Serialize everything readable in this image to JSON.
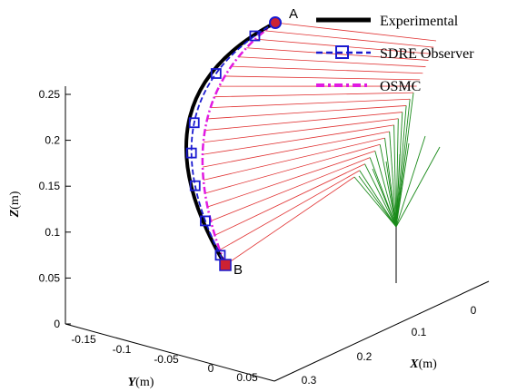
{
  "chart_data": {
    "type": "line",
    "title": "",
    "point_labels": {
      "start": "A",
      "end": "B"
    },
    "axes": {
      "z": {
        "label_letter": "Z",
        "label_unit": "(m)",
        "ticks": [
          "0",
          "0.05",
          "0.1",
          "0.15",
          "0.2",
          "0.25"
        ],
        "ylim": [
          0,
          0.25
        ]
      },
      "y": {
        "label_letter": "Y",
        "label_unit": "(m)",
        "ticks": [
          "-0.15",
          "-0.1",
          "-0.05",
          "0",
          "0.05"
        ]
      },
      "x": {
        "label_letter": "X",
        "label_unit": "(m)",
        "ticks": [
          "0",
          "0.1",
          "0.2",
          "0.3"
        ]
      }
    },
    "legend": {
      "placement": "top-right",
      "entries": [
        {
          "label": "Experimental",
          "color": "#000000",
          "style": "solid"
        },
        {
          "label": "SDRE Observer",
          "color": "#1a1ad0",
          "style": "dashed-square-markers"
        },
        {
          "label": "OSMC",
          "color": "#e11ae1",
          "style": "dash-dot"
        }
      ]
    },
    "series": [
      {
        "name": "Experimental",
        "values": [
          0.06,
          0.1,
          0.15,
          0.2,
          0.25,
          0.28
        ]
      },
      {
        "name": "SDRE Observer",
        "values": [
          0.065,
          0.11,
          0.155,
          0.2,
          0.25,
          0.28
        ]
      },
      {
        "name": "OSMC",
        "values": [
          0.07,
          0.12,
          0.16,
          0.2,
          0.25,
          0.28
        ]
      }
    ],
    "colors": {
      "experimental": "#000000",
      "sdre": "#1a1ad0",
      "osmc": "#e11ae1",
      "red_links": "#e03030",
      "green_links": "#1a8a1a",
      "marker_fill": "#cc2233"
    }
  }
}
